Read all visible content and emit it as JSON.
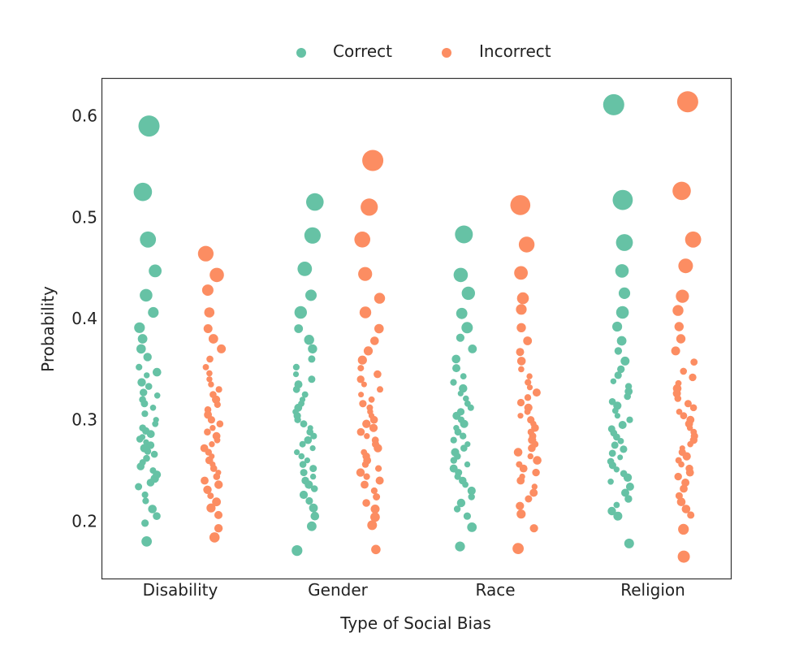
{
  "chart_data": {
    "type": "scatter",
    "subtype": "strip",
    "xlabel": "Type of Social Bias",
    "ylabel": "Probability",
    "categories": [
      "Disability",
      "Gender",
      "Race",
      "Religion"
    ],
    "y_ticks": [
      "0.2",
      "0.3",
      "0.4",
      "0.5",
      "0.6"
    ],
    "ylim": [
      0.143,
      0.637
    ],
    "grid": false,
    "legend_position": "top-center",
    "series": [
      {
        "name": "Correct",
        "color": "#66c2a5",
        "points": {
          "Disability": [
            0.59,
            0.525,
            0.478,
            0.447,
            0.423,
            0.406,
            0.391,
            0.38,
            0.37,
            0.362,
            0.352,
            0.347,
            0.344,
            0.337,
            0.333,
            0.327,
            0.324,
            0.32,
            0.316,
            0.312,
            0.306,
            0.3,
            0.296,
            0.292,
            0.289,
            0.286,
            0.283,
            0.281,
            0.278,
            0.275,
            0.272,
            0.269,
            0.266,
            0.262,
            0.258,
            0.254,
            0.25,
            0.246,
            0.242,
            0.238,
            0.234,
            0.226,
            0.22,
            0.212,
            0.205,
            0.198,
            0.18
          ],
          "Gender": [
            0.515,
            0.482,
            0.449,
            0.423,
            0.406,
            0.39,
            0.379,
            0.37,
            0.36,
            0.352,
            0.345,
            0.34,
            0.335,
            0.33,
            0.325,
            0.32,
            0.316,
            0.312,
            0.308,
            0.304,
            0.3,
            0.296,
            0.292,
            0.288,
            0.284,
            0.28,
            0.276,
            0.272,
            0.268,
            0.264,
            0.26,
            0.256,
            0.252,
            0.248,
            0.244,
            0.24,
            0.236,
            0.232,
            0.226,
            0.22,
            0.213,
            0.205,
            0.195,
            0.171
          ],
          "Race": [
            0.483,
            0.443,
            0.425,
            0.405,
            0.391,
            0.381,
            0.37,
            0.36,
            0.351,
            0.343,
            0.337,
            0.331,
            0.326,
            0.321,
            0.316,
            0.312,
            0.308,
            0.304,
            0.3,
            0.296,
            0.292,
            0.288,
            0.284,
            0.28,
            0.276,
            0.272,
            0.268,
            0.264,
            0.26,
            0.256,
            0.252,
            0.248,
            0.244,
            0.24,
            0.236,
            0.23,
            0.224,
            0.218,
            0.212,
            0.205,
            0.194,
            0.175
          ],
          "Religion": [
            0.611,
            0.517,
            0.475,
            0.447,
            0.425,
            0.406,
            0.392,
            0.378,
            0.368,
            0.358,
            0.35,
            0.344,
            0.338,
            0.333,
            0.328,
            0.323,
            0.318,
            0.314,
            0.309,
            0.304,
            0.3,
            0.295,
            0.291,
            0.287,
            0.283,
            0.279,
            0.275,
            0.271,
            0.267,
            0.263,
            0.259,
            0.255,
            0.251,
            0.247,
            0.243,
            0.239,
            0.234,
            0.228,
            0.222,
            0.216,
            0.21,
            0.205,
            0.178
          ]
        }
      },
      {
        "name": "Incorrect",
        "color": "#fc8d62",
        "points": {
          "Disability": [
            0.464,
            0.443,
            0.428,
            0.406,
            0.39,
            0.38,
            0.37,
            0.36,
            0.352,
            0.346,
            0.34,
            0.335,
            0.33,
            0.325,
            0.32,
            0.315,
            0.31,
            0.305,
            0.3,
            0.296,
            0.292,
            0.288,
            0.284,
            0.28,
            0.276,
            0.272,
            0.268,
            0.264,
            0.26,
            0.256,
            0.252,
            0.248,
            0.244,
            0.24,
            0.236,
            0.231,
            0.225,
            0.219,
            0.213,
            0.206,
            0.193,
            0.184
          ],
          "Gender": [
            0.556,
            0.51,
            0.478,
            0.444,
            0.42,
            0.406,
            0.39,
            0.378,
            0.368,
            0.359,
            0.351,
            0.345,
            0.34,
            0.335,
            0.33,
            0.325,
            0.32,
            0.316,
            0.312,
            0.308,
            0.304,
            0.3,
            0.296,
            0.292,
            0.288,
            0.284,
            0.28,
            0.276,
            0.272,
            0.268,
            0.264,
            0.26,
            0.256,
            0.252,
            0.248,
            0.244,
            0.24,
            0.236,
            0.23,
            0.224,
            0.218,
            0.212,
            0.204,
            0.196,
            0.172
          ],
          "Race": [
            0.512,
            0.473,
            0.445,
            0.42,
            0.409,
            0.391,
            0.378,
            0.367,
            0.358,
            0.35,
            0.343,
            0.337,
            0.332,
            0.327,
            0.322,
            0.317,
            0.312,
            0.308,
            0.304,
            0.3,
            0.296,
            0.292,
            0.288,
            0.284,
            0.28,
            0.276,
            0.272,
            0.268,
            0.264,
            0.26,
            0.256,
            0.252,
            0.248,
            0.244,
            0.24,
            0.234,
            0.228,
            0.222,
            0.215,
            0.207,
            0.193,
            0.173
          ],
          "Religion": [
            0.614,
            0.526,
            0.478,
            0.452,
            0.422,
            0.408,
            0.392,
            0.38,
            0.368,
            0.357,
            0.348,
            0.342,
            0.336,
            0.331,
            0.326,
            0.321,
            0.316,
            0.312,
            0.308,
            0.304,
            0.3,
            0.296,
            0.292,
            0.288,
            0.284,
            0.28,
            0.276,
            0.272,
            0.268,
            0.264,
            0.26,
            0.256,
            0.252,
            0.248,
            0.244,
            0.238,
            0.232,
            0.225,
            0.219,
            0.212,
            0.206,
            0.192,
            0.165
          ]
        }
      }
    ]
  }
}
